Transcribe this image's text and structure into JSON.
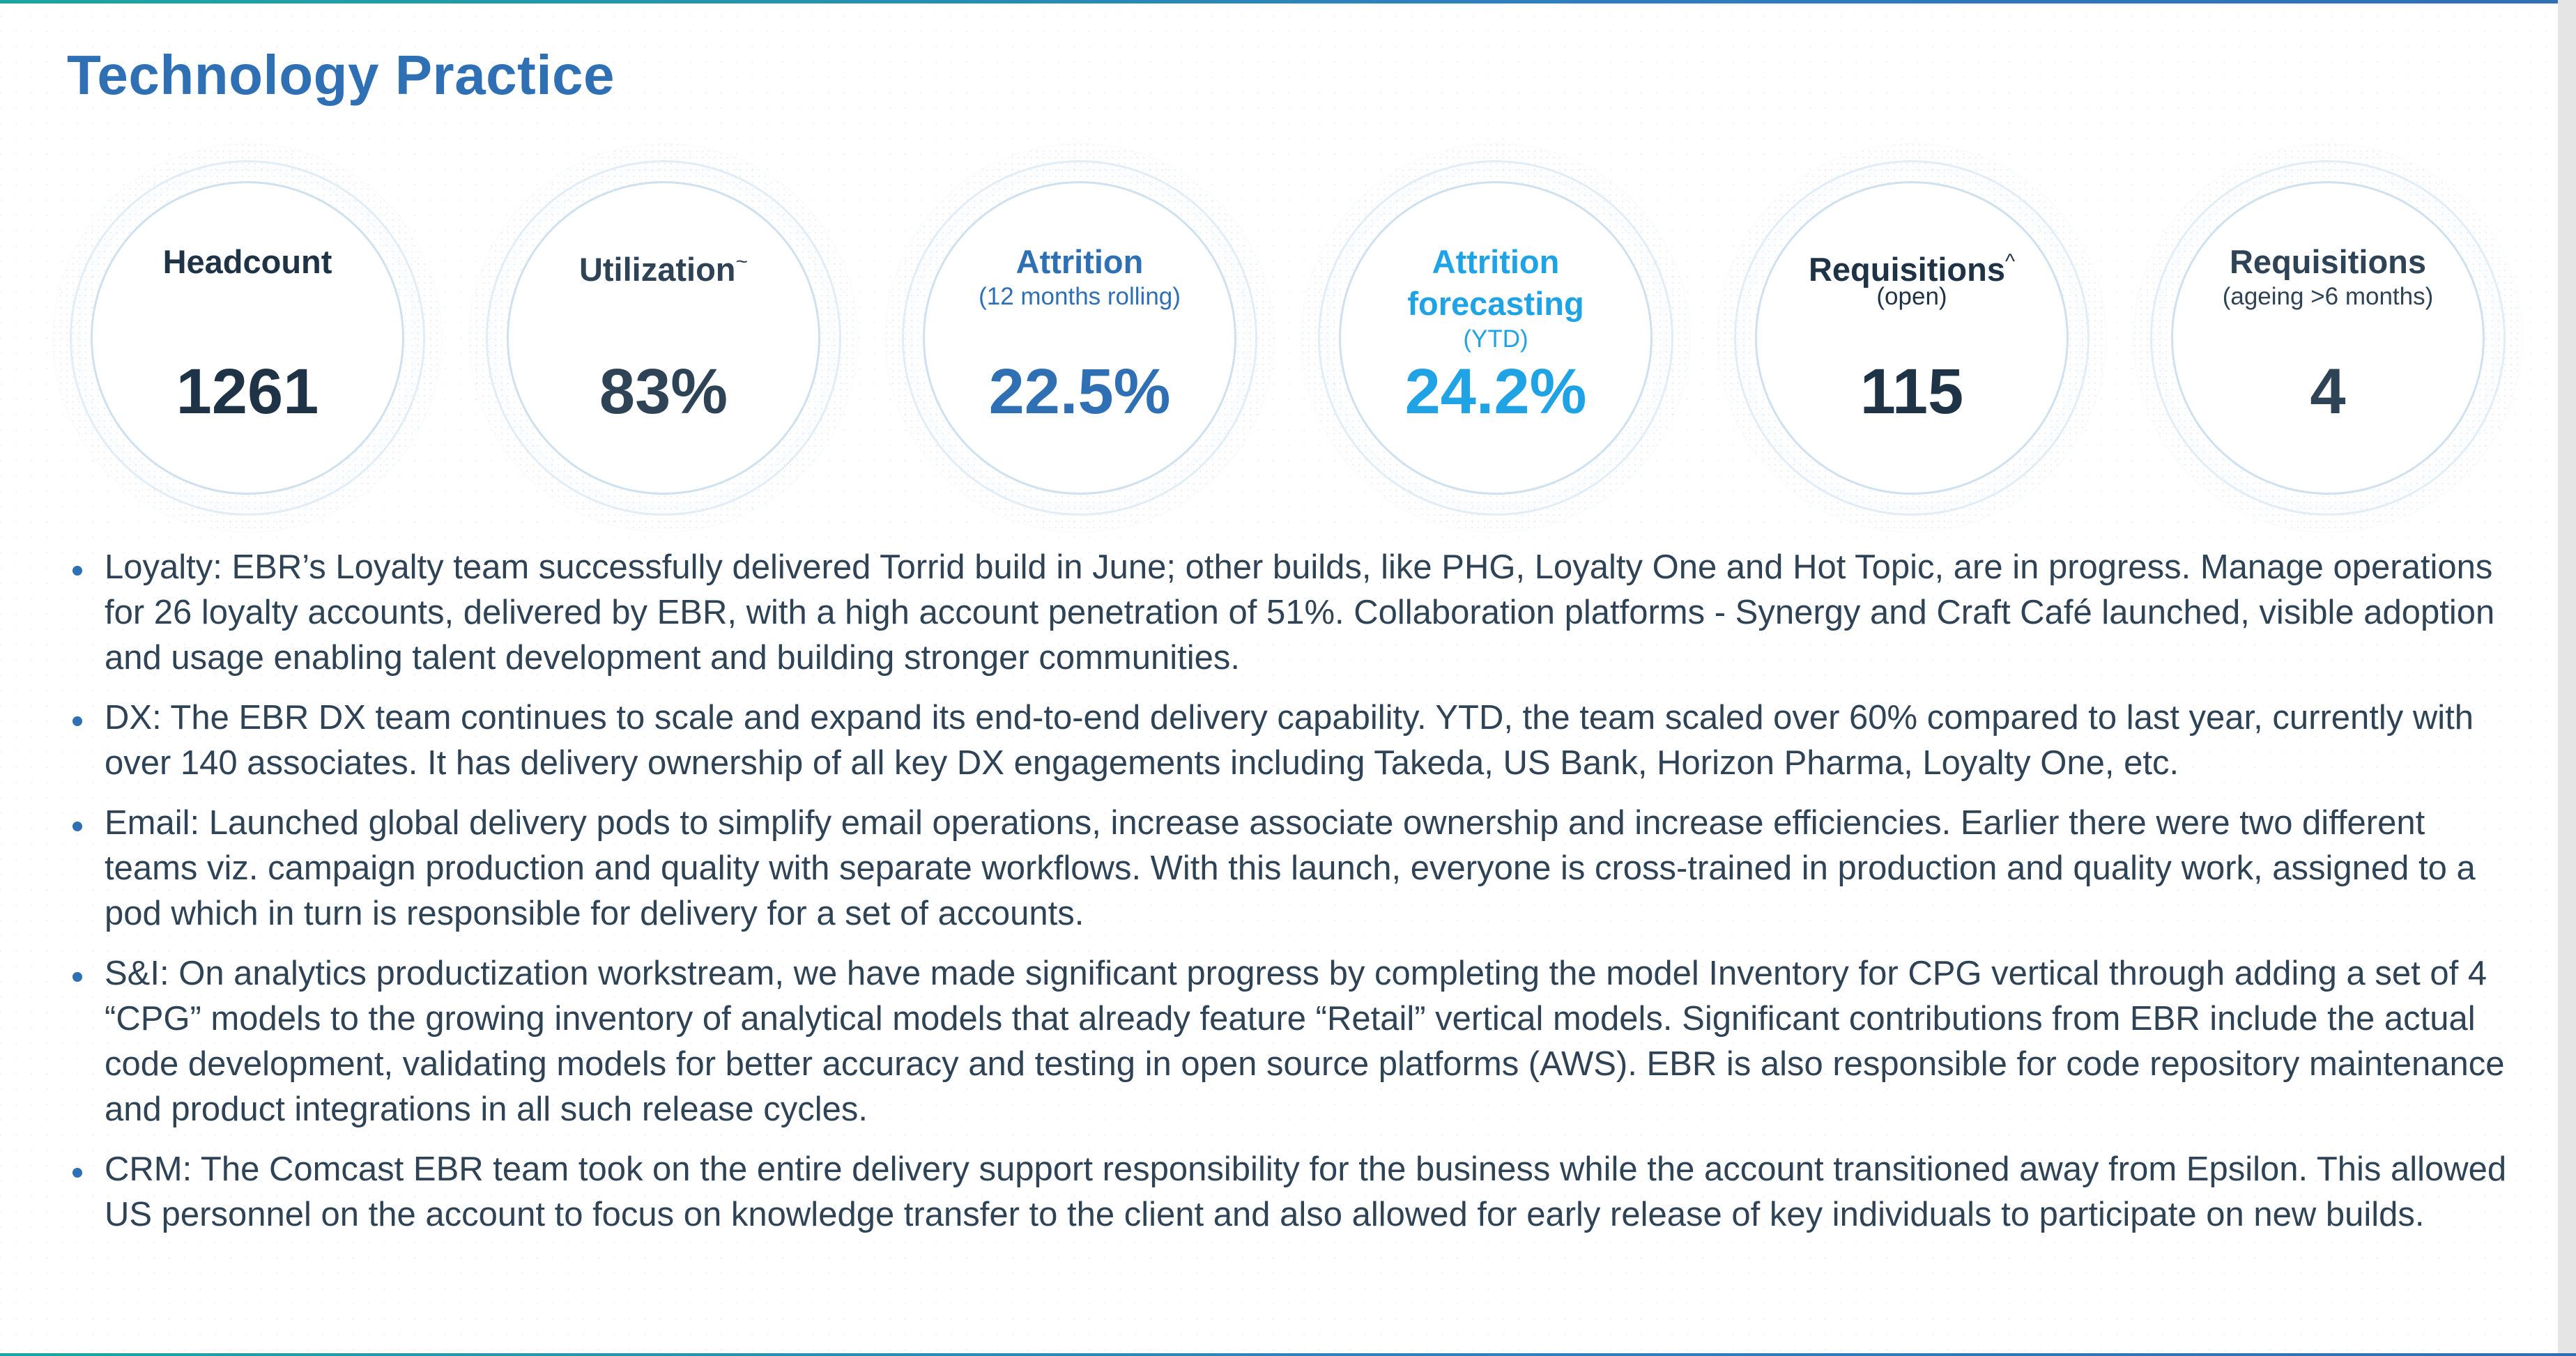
{
  "slide": {
    "title": "Technology Practice",
    "colors": {
      "title": "#2f6fb3",
      "dark_text": "#1f3347",
      "slate_text": "#2f4356",
      "medium_blue": "#2f6fb3",
      "cyan": "#1fa3e4",
      "accent_rule": "#1aa6a0"
    }
  },
  "kpis": [
    {
      "label": "Headcount",
      "sup": "",
      "label2": "",
      "sub": "",
      "value": "1261"
    },
    {
      "label": "Utilization",
      "sup": "~",
      "label2": "",
      "sub": "",
      "value": "83%"
    },
    {
      "label": "Attrition",
      "sup": "",
      "label2": "",
      "sub": "(12 months rolling)",
      "value": "22.5%"
    },
    {
      "label": "Attrition",
      "sup": "",
      "label2": "forecasting",
      "sub": "(YTD)",
      "value": "24.2%"
    },
    {
      "label": "Requisitions",
      "sup": "^",
      "label2": "",
      "sub": "(open)",
      "value": "115"
    },
    {
      "label": "Requisitions",
      "sup": "",
      "label2": "",
      "sub": "(ageing >6 months)",
      "value": "4"
    }
  ],
  "bullets": [
    "Loyalty: EBR’s Loyalty team successfully delivered Torrid build in June; other builds, like PHG, Loyalty One and Hot Topic, are in progress. Manage operations for 26 loyalty accounts, delivered by EBR, with a high account penetration of 51%. Collaboration platforms - Synergy and Craft Café launched, visible adoption and usage enabling talent development and building stronger communities.",
    "DX: The EBR DX team continues to scale and expand its end-to-end delivery capability. YTD, the team scaled over 60% compared to last year, currently with over 140 associates. It has delivery ownership of all key DX engagements including Takeda, US Bank, Horizon Pharma, Loyalty One, etc.",
    "Email: Launched global delivery pods to simplify email operations, increase associate ownership and increase efficiencies. Earlier there were two different teams viz. campaign production and quality with separate workflows. With this launch, everyone is cross-trained in production and quality work, assigned to a pod which in turn is responsible for delivery for a set of accounts.",
    "S&I: On analytics productization workstream, we have made significant progress by completing the model Inventory for CPG vertical through adding a set of 4 “CPG” models to the growing inventory of analytical models that already feature “Retail” vertical models. Significant contributions from EBR include the actual code development, validating models for better accuracy and testing in open source platforms (AWS). EBR is also responsible for code repository maintenance and product integrations in all such release cycles.",
    "CRM: The Comcast EBR team took on the entire delivery support responsibility for the business while the account transitioned away from Epsilon. This allowed US personnel  on the account to focus on knowledge transfer to the client and also allowed for early release of key individuals to participate on new builds."
  ]
}
